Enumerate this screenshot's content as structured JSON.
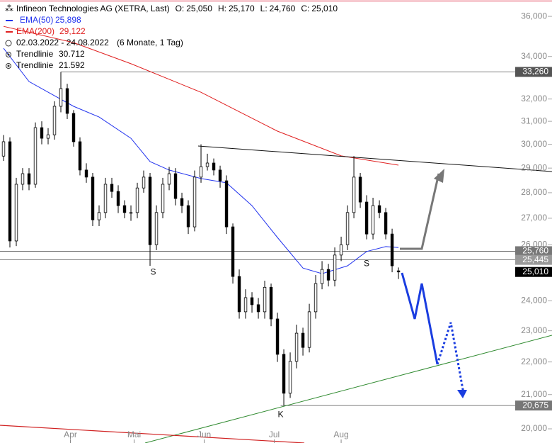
{
  "chart_data": {
    "type": "candlestick",
    "title": "Infineon Technologies AG (XETRA, Last)",
    "ohlc_labels": [
      {
        "key": "O:",
        "value": "25,050"
      },
      {
        "key": "H:",
        "value": "25,170"
      },
      {
        "key": "L:",
        "value": "24,760"
      },
      {
        "key": "C:",
        "value": "25,010"
      }
    ],
    "period": "02.03.2022 - 24.08.2022",
    "period_note": "(6 Monate, 1 Tag)",
    "trendlines": [
      {
        "name": "Trendlinie",
        "value": "30.712"
      },
      {
        "name": "Trendlinie",
        "value": "21.592"
      }
    ],
    "log_scale": true,
    "xlim": [
      -1.11,
      172.2
    ],
    "ylim": [
      19600,
      36850
    ],
    "xticks": [
      {
        "value": 21,
        "label": "Apr"
      },
      {
        "value": 41,
        "label": "Mai"
      },
      {
        "value": 63,
        "label": "Jun"
      },
      {
        "value": 85,
        "label": "Jul"
      },
      {
        "value": 106,
        "label": "Aug"
      }
    ],
    "yticks": [
      {
        "value": 20000,
        "label": "20,000"
      },
      {
        "value": 21000,
        "label": "21,000"
      },
      {
        "value": 22000,
        "label": "22,000"
      },
      {
        "value": 23000,
        "label": "23,000"
      },
      {
        "value": 24000,
        "label": "24,000"
      },
      {
        "value": 26000,
        "label": "26,000"
      },
      {
        "value": 27000,
        "label": "27,000"
      },
      {
        "value": 28000,
        "label": "28,000"
      },
      {
        "value": 29000,
        "label": "29,000"
      },
      {
        "value": 30000,
        "label": "30,000"
      },
      {
        "value": 31000,
        "label": "31,000"
      },
      {
        "value": 32000,
        "label": "32,000"
      },
      {
        "value": 34000,
        "label": "34,000"
      },
      {
        "value": 36000,
        "label": "36,000"
      }
    ],
    "candles": {
      "up_color": "#ffffff",
      "down_color": "#000000",
      "edge_color": "#000000",
      "x": [
        0,
        2,
        4,
        6,
        8,
        10,
        12,
        14,
        16,
        18,
        20,
        22,
        24,
        26,
        28,
        30,
        32,
        34,
        36,
        38,
        40,
        42,
        44,
        46,
        48,
        50,
        52,
        54,
        56,
        58,
        60,
        62,
        64,
        66,
        68,
        70,
        72,
        74,
        76,
        78,
        80,
        82,
        84,
        86,
        88,
        90,
        92,
        94,
        96,
        98,
        100,
        102,
        104,
        106,
        108,
        110,
        112,
        114,
        116,
        118,
        120,
        122,
        124
      ],
      "ohlc": [
        [
          29500,
          30400,
          29300,
          30110
        ],
        [
          30110,
          30300,
          25900,
          26140
        ],
        [
          26140,
          28600,
          25950,
          28340
        ],
        [
          28340,
          29000,
          28100,
          28770
        ],
        [
          28770,
          29000,
          28100,
          28340
        ],
        [
          28340,
          30950,
          28200,
          30720
        ],
        [
          30720,
          31000,
          30000,
          30260
        ],
        [
          30260,
          30700,
          30000,
          30410
        ],
        [
          30410,
          31900,
          30200,
          31670
        ],
        [
          31670,
          33260,
          31400,
          32480
        ],
        [
          32480,
          32700,
          31100,
          31350
        ],
        [
          31350,
          31500,
          29900,
          30110
        ],
        [
          30110,
          30300,
          28700,
          28920
        ],
        [
          28920,
          29200,
          28400,
          28630
        ],
        [
          28630,
          28800,
          26700,
          26940
        ],
        [
          26940,
          27500,
          26700,
          27220
        ],
        [
          27220,
          28600,
          27000,
          28340
        ],
        [
          28340,
          28600,
          27800,
          28050
        ],
        [
          28050,
          28300,
          27200,
          27490
        ],
        [
          27490,
          27700,
          27000,
          27220
        ],
        [
          27220,
          27500,
          26900,
          27220
        ],
        [
          27220,
          28400,
          27000,
          28190
        ],
        [
          28190,
          28900,
          28000,
          28630
        ],
        [
          28630,
          28800,
          25230,
          26000
        ],
        [
          26000,
          27500,
          25800,
          27220
        ],
        [
          27220,
          28600,
          27000,
          28340
        ],
        [
          28340,
          29050,
          28100,
          28770
        ],
        [
          28770,
          29000,
          27500,
          27770
        ],
        [
          27770,
          28000,
          27200,
          27490
        ],
        [
          27490,
          27700,
          26400,
          26670
        ],
        [
          26670,
          28900,
          26500,
          28630
        ],
        [
          28630,
          30000,
          28400,
          29060
        ],
        [
          29060,
          29600,
          28900,
          29210
        ],
        [
          29210,
          29400,
          28700,
          28920
        ],
        [
          28920,
          29100,
          28200,
          28480
        ],
        [
          28480,
          28700,
          26400,
          26670
        ],
        [
          26670,
          26800,
          24600,
          24850
        ],
        [
          24850,
          25100,
          23400,
          23630
        ],
        [
          23630,
          24400,
          23400,
          24110
        ],
        [
          24110,
          24300,
          23600,
          23870
        ],
        [
          23870,
          24100,
          23400,
          23630
        ],
        [
          23630,
          24700,
          23400,
          24470
        ],
        [
          24470,
          24600,
          23150,
          23390
        ],
        [
          23390,
          23600,
          22000,
          22240
        ],
        [
          22240,
          22400,
          20675,
          21040
        ],
        [
          21040,
          22300,
          20900,
          22020
        ],
        [
          22020,
          23200,
          21800,
          22920
        ],
        [
          22920,
          23100,
          22200,
          22460
        ],
        [
          22460,
          23900,
          22300,
          23630
        ],
        [
          23630,
          24900,
          23400,
          24600
        ],
        [
          24600,
          25400,
          24400,
          25100
        ],
        [
          25100,
          25300,
          24500,
          24720
        ],
        [
          24720,
          25900,
          24500,
          25620
        ],
        [
          25620,
          26300,
          25400,
          26000
        ],
        [
          26000,
          27500,
          25800,
          27220
        ],
        [
          27220,
          29500,
          27000,
          28630
        ],
        [
          28630,
          28800,
          27400,
          27630
        ],
        [
          27630,
          27900,
          26200,
          26400
        ],
        [
          26400,
          27800,
          26200,
          27490
        ],
        [
          27490,
          27700,
          27000,
          27220
        ],
        [
          27220,
          27400,
          26200,
          26400
        ],
        [
          26400,
          26600,
          25000,
          25230
        ],
        [
          25050,
          25170,
          24760,
          25010
        ]
      ]
    },
    "series": [
      {
        "name": "EMA(50)",
        "value_label": "25,898",
        "color": "#2233ee",
        "x": [
          0,
          8,
          16,
          22,
          30,
          40,
          46,
          52,
          62,
          70,
          78,
          86,
          94,
          100,
          108,
          114,
          120,
          124
        ],
        "values": [
          34400,
          32810,
          32150,
          31670,
          31190,
          30260,
          29270,
          28920,
          28570,
          28400,
          27490,
          26270,
          25150,
          24950,
          25230,
          25750,
          25930,
          25898
        ]
      },
      {
        "name": "EMA(200)",
        "value_label": "29,122",
        "color": "#e02020",
        "x": [
          0,
          22,
          40,
          62,
          86,
          106,
          124
        ],
        "values": [
          35490,
          34680,
          33650,
          32310,
          30570,
          29510,
          29122
        ]
      }
    ],
    "levels": [
      {
        "value": 33260,
        "label": "33,260",
        "color": "#555555",
        "from": 18
      },
      {
        "value": 25760,
        "label": "25,760",
        "color": "#777777",
        "from": -1.11
      },
      {
        "value": 25445,
        "label": "25,445",
        "color": "#999999",
        "from": -1.11
      },
      {
        "value": 25010,
        "label": "25,010",
        "color": "#000000",
        "from": null
      },
      {
        "value": 20675,
        "label": "20,675",
        "color": "#777777",
        "from": 87
      }
    ],
    "annotations": [
      {
        "text": "S",
        "x": 47,
        "y": 25000
      },
      {
        "text": "S",
        "x": 114,
        "y": 25300
      },
      {
        "text": "K",
        "x": 87,
        "y": 20400
      }
    ]
  }
}
